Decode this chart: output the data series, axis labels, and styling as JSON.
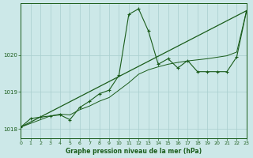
{
  "title": "Graphe pression niveau de la mer (hPa)",
  "bg_color": "#cce8e8",
  "plot_bg_color": "#cce8e8",
  "line_color": "#1a5c1a",
  "grid_color": "#a8cece",
  "x_min": 0,
  "x_max": 23,
  "y_min": 1017.75,
  "y_max": 1021.4,
  "yticks": [
    1018,
    1019,
    1020
  ],
  "xticks": [
    0,
    1,
    2,
    3,
    4,
    5,
    6,
    7,
    8,
    9,
    10,
    11,
    12,
    13,
    14,
    15,
    16,
    17,
    18,
    19,
    20,
    21,
    22,
    23
  ],
  "main_line_x": [
    0,
    1,
    2,
    3,
    4,
    5,
    6,
    7,
    8,
    9,
    10,
    11,
    12,
    13,
    14,
    15,
    16,
    17,
    18,
    19,
    20,
    21,
    22,
    23
  ],
  "main_line_y": [
    1018.05,
    1018.28,
    1018.32,
    1018.35,
    1018.38,
    1018.25,
    1018.58,
    1018.75,
    1018.95,
    1019.05,
    1019.45,
    1021.1,
    1021.25,
    1020.65,
    1019.75,
    1019.9,
    1019.65,
    1019.85,
    1019.55,
    1019.55,
    1019.55,
    1019.55,
    1019.95,
    1021.2
  ],
  "trend_line_x": [
    0,
    23
  ],
  "trend_line_y": [
    1018.05,
    1021.2
  ],
  "smooth_line_x": [
    0,
    1,
    2,
    3,
    4,
    5,
    6,
    7,
    8,
    9,
    10,
    11,
    12,
    13,
    14,
    15,
    16,
    17,
    18,
    19,
    20,
    21,
    22,
    23
  ],
  "smooth_line_y": [
    1018.05,
    1018.15,
    1018.25,
    1018.35,
    1018.4,
    1018.38,
    1018.52,
    1018.62,
    1018.75,
    1018.85,
    1019.05,
    1019.25,
    1019.48,
    1019.6,
    1019.68,
    1019.75,
    1019.8,
    1019.84,
    1019.87,
    1019.9,
    1019.94,
    1019.98,
    1020.08,
    1021.2
  ]
}
